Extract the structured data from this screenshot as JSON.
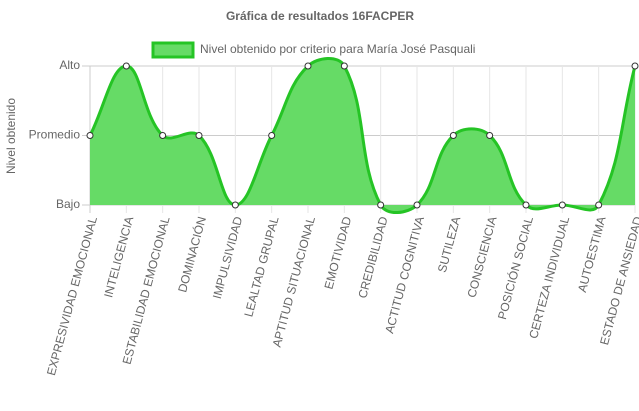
{
  "chart_data": {
    "type": "line",
    "title": "Gráfica de resultados 16FACPER",
    "y_label": "Nivel obtenido",
    "categories": [
      "EXPRESIVIDAD EMOCIONAL",
      "INTELIGENCIA",
      "ESTABILIDAD EMOCIONAL",
      "DOMINACIÓN",
      "IMPULSIVIDAD",
      "LEALTAD GRUPAL",
      "APTITUD SITUACIONAL",
      "EMOTIVIDAD",
      "CREDIBILIDAD",
      "ACTITUD COGNITIVA",
      "SUTILEZA",
      "CONSCIENCIA",
      "POSICIÓN SOCIAL",
      "CERTEZA INDIVIDUAL",
      "AUTOESTIMA",
      "ESTADO DE ANSIEDAD"
    ],
    "series": [
      {
        "name": "Nivel obtenido por criterio para María José Pasquali",
        "color": "#25c425",
        "fill": "#66db66",
        "values": [
          1,
          2,
          1,
          1,
          0,
          1,
          2,
          2,
          0,
          0,
          1,
          1,
          0,
          0,
          0,
          2
        ]
      }
    ],
    "ylim": [
      0,
      2
    ],
    "yticks": [
      {
        "value": 0,
        "label": "Bajo"
      },
      {
        "value": 1,
        "label": "Promedio"
      },
      {
        "value": 2,
        "label": "Alto"
      }
    ],
    "grid": true,
    "legend": "top"
  }
}
